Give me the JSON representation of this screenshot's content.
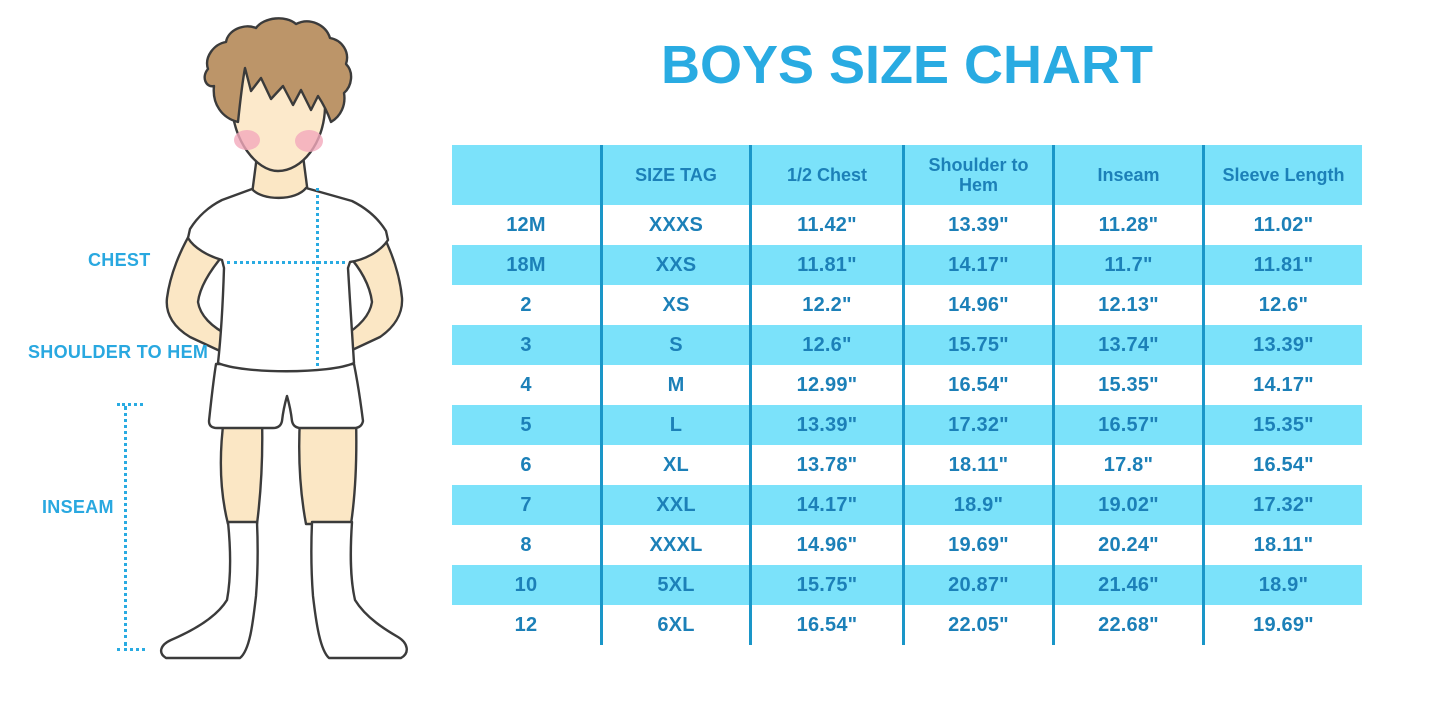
{
  "title": "BOYS SIZE CHART",
  "figure": {
    "description": "cartoon boy in white t-shirt, shorts and knee socks used to indicate measurement points",
    "labels": {
      "chest": "CHEST",
      "shoulder_to_hem": "SHOULDER TO HEM",
      "inseam": "INSEAM"
    }
  },
  "colors": {
    "title_blue": "#29ABE2",
    "label_blue": "#29A8E0",
    "row_cyan": "#7BE2FA",
    "divider_blue": "#1A96C8",
    "cell_text_blue": "#1C80B8",
    "skin": "#FBE7C5",
    "hair": "#BC9569",
    "cheek": "#F2A9BC"
  },
  "chart_data": {
    "type": "table",
    "title": "BOYS SIZE CHART",
    "columns": [
      "",
      "SIZE TAG",
      "1/2 Chest",
      "Shoulder to Hem",
      "Inseam",
      "Sleeve Length"
    ],
    "rows": [
      [
        "12M",
        "XXXS",
        "11.42\"",
        "13.39\"",
        "11.28\"",
        "11.02\""
      ],
      [
        "18M",
        "XXS",
        "11.81\"",
        "14.17\"",
        "11.7\"",
        "11.81\""
      ],
      [
        "2",
        "XS",
        "12.2\"",
        "14.96\"",
        "12.13\"",
        "12.6\""
      ],
      [
        "3",
        "S",
        "12.6\"",
        "15.75\"",
        "13.74\"",
        "13.39\""
      ],
      [
        "4",
        "M",
        "12.99\"",
        "16.54\"",
        "15.35\"",
        "14.17\""
      ],
      [
        "5",
        "L",
        "13.39\"",
        "17.32\"",
        "16.57\"",
        "15.35\""
      ],
      [
        "6",
        "XL",
        "13.78\"",
        "18.11\"",
        "17.8\"",
        "16.54\""
      ],
      [
        "7",
        "XXL",
        "14.17\"",
        "18.9\"",
        "19.02\"",
        "17.32\""
      ],
      [
        "8",
        "XXXL",
        "14.96\"",
        "19.69\"",
        "20.24\"",
        "18.11\""
      ],
      [
        "10",
        "5XL",
        "15.75\"",
        "20.87\"",
        "21.46\"",
        "18.9\""
      ],
      [
        "12",
        "6XL",
        "16.54\"",
        "22.05\"",
        "22.68\"",
        "19.69\""
      ]
    ],
    "layout": {
      "striping": "alternating white and cyan rows",
      "grid": "vertical dividers only"
    }
  }
}
